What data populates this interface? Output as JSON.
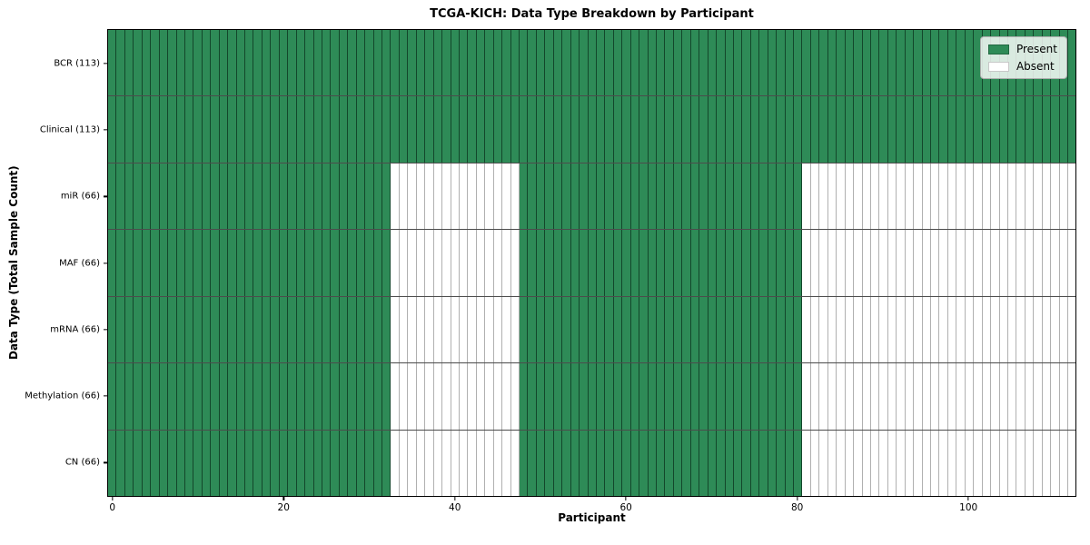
{
  "chart_data": {
    "type": "heatmap",
    "title": "TCGA-KICH: Data Type Breakdown by Participant",
    "xlabel": "Participant",
    "ylabel": "Data Type (Total Sample Count)",
    "n_participants": 113,
    "xlim": [
      -0.5,
      112.5
    ],
    "x_ticks": [
      0,
      20,
      40,
      60,
      80,
      100
    ],
    "grid": "cell-borders",
    "legend": {
      "position": "upper right",
      "entries": [
        {
          "label": "Present",
          "state": "present"
        },
        {
          "label": "Absent",
          "state": "absent"
        }
      ]
    },
    "colors": {
      "present": "#2e8b57",
      "absent": "#ffffff",
      "cell_edge": "#000000",
      "legend_background": "rgba(255,255,255,0.82)"
    },
    "rows": [
      {
        "label": "BCR (113)",
        "name": "BCR",
        "present_count": 113,
        "present_ranges": [
          [
            0,
            112
          ]
        ]
      },
      {
        "label": "Clinical (113)",
        "name": "Clinical",
        "present_count": 113,
        "present_ranges": [
          [
            0,
            112
          ]
        ]
      },
      {
        "label": "miR (66)",
        "name": "miR",
        "present_count": 66,
        "present_ranges": [
          [
            0,
            32
          ],
          [
            48,
            80
          ]
        ]
      },
      {
        "label": "MAF (66)",
        "name": "MAF",
        "present_count": 66,
        "present_ranges": [
          [
            0,
            32
          ],
          [
            48,
            80
          ]
        ]
      },
      {
        "label": "mRNA (66)",
        "name": "mRNA",
        "present_count": 66,
        "present_ranges": [
          [
            0,
            32
          ],
          [
            48,
            80
          ]
        ]
      },
      {
        "label": "Methylation (66)",
        "name": "Methylation",
        "present_count": 66,
        "present_ranges": [
          [
            0,
            32
          ],
          [
            48,
            80
          ]
        ]
      },
      {
        "label": "CN (66)",
        "name": "CN",
        "present_count": 66,
        "present_ranges": [
          [
            0,
            32
          ],
          [
            48,
            80
          ]
        ]
      }
    ]
  }
}
